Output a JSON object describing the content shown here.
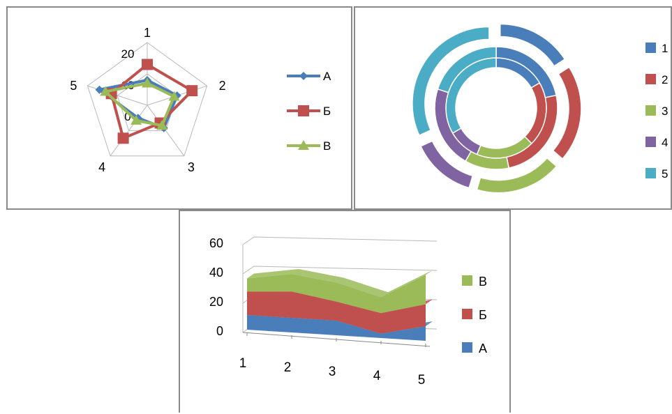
{
  "colors": {
    "A": "#4a7ebb",
    "B": "#c0504d",
    "V": "#9bbb59",
    "purple": "#8064a2",
    "cyan": "#4bacc6",
    "grid": "#b8b8b8"
  },
  "chart_data": [
    {
      "type": "radar",
      "categories": [
        "1",
        "2",
        "3",
        "4",
        "5"
      ],
      "axis_ticks": [
        "0",
        "10",
        "20"
      ],
      "ylim": [
        0,
        20
      ],
      "grid": true,
      "legend_position": "right",
      "series": [
        {
          "name": "А",
          "values": [
            8,
            10,
            9,
            5,
            16
          ],
          "color": "#4a7ebb",
          "marker": "diamond"
        },
        {
          "name": "Б",
          "values": [
            13,
            15,
            7,
            13,
            12
          ],
          "color": "#c0504d",
          "marker": "square"
        },
        {
          "name": "В",
          "values": [
            7,
            9,
            8,
            6,
            14
          ],
          "color": "#9bbb59",
          "marker": "triangle"
        }
      ]
    },
    {
      "type": "pie",
      "subtype": "doughnut",
      "legend_position": "right",
      "legend": [
        "1",
        "2",
        "3",
        "4",
        "5"
      ],
      "slice_colors": [
        "#4a7ebb",
        "#c0504d",
        "#9bbb59",
        "#8064a2",
        "#4bacc6"
      ],
      "rings": [
        {
          "values": [
            8,
            10,
            9,
            5,
            16
          ]
        },
        {
          "values": [
            13,
            15,
            7,
            13,
            12
          ]
        },
        {
          "values": [
            7,
            9,
            8,
            6,
            14
          ]
        }
      ]
    },
    {
      "type": "area",
      "subtype": "stacked-3d",
      "categories": [
        "1",
        "2",
        "3",
        "4",
        "5"
      ],
      "yticks": [
        "0",
        "20",
        "40",
        "60"
      ],
      "ylim": [
        0,
        60
      ],
      "grid": true,
      "legend_position": "right",
      "series": [
        {
          "name": "А",
          "values": [
            10,
            10,
            10,
            3,
            10
          ],
          "color": "#4a7ebb"
        },
        {
          "name": "Б",
          "values": [
            16,
            18,
            13,
            14,
            15
          ],
          "color": "#c0504d"
        },
        {
          "name": "В",
          "values": [
            9,
            12,
            13,
            11,
            20
          ],
          "color": "#9bbb59"
        }
      ],
      "legend_order": [
        "В",
        "Б",
        "А"
      ]
    }
  ]
}
